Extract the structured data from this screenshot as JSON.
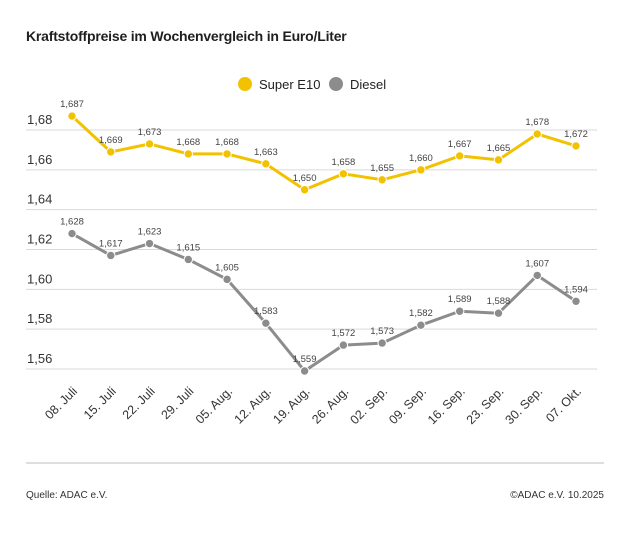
{
  "title": "Kraftstoffpreise im Wochenvergleich in Euro/Liter",
  "footer": {
    "source": "Quelle: ADAC e.V.",
    "copyright": "©ADAC e.V. 10.2025"
  },
  "colors": {
    "super_e10": "#f2c200",
    "diesel": "#8c8c8c",
    "grid": "#d9d9d9",
    "baseline": "#bdbdbd"
  },
  "chart_data": {
    "type": "line",
    "title": "Kraftstoffpreise im Wochenvergleich in Euro/Liter",
    "xlabel": "",
    "ylabel": "",
    "ylim": [
      1.54,
      1.7
    ],
    "yticks": [
      1.56,
      1.58,
      1.6,
      1.62,
      1.64,
      1.66,
      1.68
    ],
    "ytick_labels": [
      "1,56",
      "1,58",
      "1,60",
      "1,62",
      "1,64",
      "1,66",
      "1,68"
    ],
    "grid": true,
    "legend": "top-center",
    "categories": [
      "08. Juli",
      "15. Juli",
      "22. Juli",
      "29. Juli",
      "05. Aug.",
      "12. Aug.",
      "19. Aug.",
      "26. Aug.",
      "02. Sep.",
      "09. Sep.",
      "16. Sep.",
      "23. Sep.",
      "30. Sep.",
      "07. Okt."
    ],
    "series": [
      {
        "name": "Super E10",
        "color": "#f2c200",
        "values": [
          1.687,
          1.669,
          1.673,
          1.668,
          1.668,
          1.663,
          1.65,
          1.658,
          1.655,
          1.66,
          1.667,
          1.665,
          1.678,
          1.672
        ],
        "labels": [
          "1,687",
          "1,669",
          "1,673",
          "1,668",
          "1,668",
          "1,663",
          "1,650",
          "1,658",
          "1,655",
          "1,660",
          "1,667",
          "1,665",
          "1,678",
          "1,672"
        ]
      },
      {
        "name": "Diesel",
        "color": "#8c8c8c",
        "values": [
          1.628,
          1.617,
          1.623,
          1.615,
          1.605,
          1.583,
          1.559,
          1.572,
          1.573,
          1.582,
          1.589,
          1.588,
          1.607,
          1.594
        ],
        "labels": [
          "1,628",
          "1,617",
          "1,623",
          "1,615",
          "1,605",
          "1,583",
          "1,559",
          "1,572",
          "1,573",
          "1,582",
          "1,589",
          "1,588",
          "1,607",
          "1,594"
        ]
      }
    ]
  }
}
